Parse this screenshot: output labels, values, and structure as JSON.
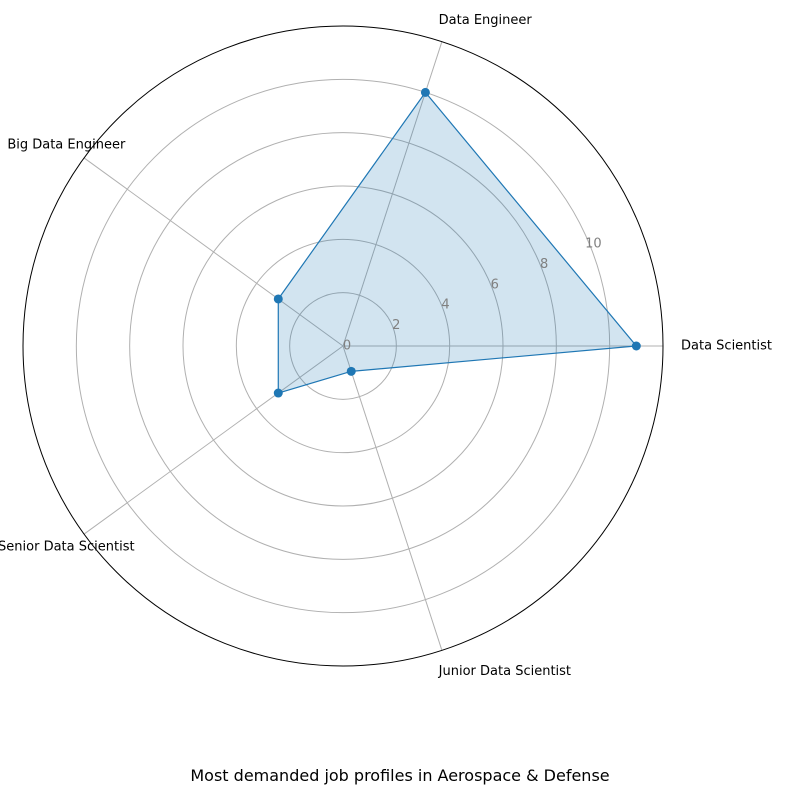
{
  "chart_data": {
    "type": "radar",
    "title": "Most demanded job profiles in Aerospace & Defense",
    "categories": [
      "Data Scientist",
      "Data Engineer",
      "Big Data Engineer",
      "Senior Data Scientist",
      "Junior Data Scientist"
    ],
    "series": [
      {
        "values": [
          11,
          10,
          3,
          3,
          1
        ]
      }
    ],
    "rlim": [
      0,
      12
    ],
    "rticks": [
      0,
      2,
      4,
      6,
      8,
      10
    ],
    "grid": true,
    "colors": {
      "line": "#1f77b4",
      "fill": "#1f77b4",
      "grid": "#b0b0b0",
      "frame": "#000000",
      "tick": "#808080"
    }
  }
}
